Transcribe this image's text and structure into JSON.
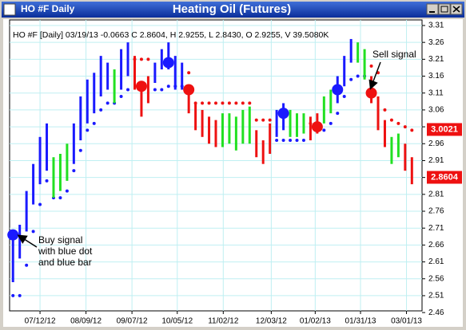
{
  "window_title": "HO #F Daily",
  "chart_data": {
    "type": "ohlc",
    "title": "Heating Oil (Futures)",
    "info": "HO #F [Daily] 03/19/13 -0.0663 C 2.8604, H 2.9255, L 2.8430, O 2.9255, V 39.5080K",
    "palette": {
      "blue": "#1a1aff",
      "green": "#22e022",
      "red": "#ee1111"
    },
    "x": [
      0,
      1,
      2,
      3,
      4,
      5,
      6,
      7,
      8,
      9,
      10,
      11,
      12,
      13,
      14,
      15,
      16,
      17,
      18,
      19,
      20,
      21,
      22,
      23,
      24,
      25,
      26,
      27,
      28,
      29,
      30,
      31,
      32,
      33,
      34,
      35,
      36,
      37,
      38,
      39,
      40,
      41,
      42,
      43,
      44,
      45,
      46,
      47,
      48,
      49,
      50,
      51,
      52,
      53,
      54,
      55,
      56,
      57,
      58,
      59
    ],
    "high": [
      2.68,
      2.72,
      2.82,
      2.9,
      2.98,
      3.02,
      2.92,
      2.93,
      2.96,
      3.02,
      3.1,
      3.15,
      3.17,
      3.22,
      3.2,
      3.18,
      3.24,
      3.26,
      3.22,
      3.14,
      3.16,
      3.2,
      3.24,
      3.26,
      3.22,
      3.2,
      3.13,
      3.08,
      3.06,
      3.04,
      3.03,
      3.05,
      3.05,
      3.04,
      3.06,
      3.07,
      3.0,
      2.97,
      3.02,
      3.06,
      3.08,
      3.06,
      3.05,
      3.05,
      3.04,
      3.05,
      3.1,
      3.12,
      3.16,
      3.22,
      3.27,
      3.26,
      3.24,
      3.16,
      3.1,
      3.03,
      2.98,
      2.99,
      2.96,
      2.92
    ],
    "low": [
      2.55,
      2.62,
      2.7,
      2.78,
      2.84,
      2.88,
      2.8,
      2.82,
      2.85,
      2.9,
      2.97,
      3.02,
      3.05,
      3.1,
      3.12,
      3.08,
      3.12,
      3.16,
      3.12,
      3.04,
      3.08,
      3.14,
      3.18,
      3.18,
      3.12,
      3.12,
      3.05,
      3.0,
      2.98,
      2.96,
      2.95,
      2.95,
      2.96,
      2.94,
      2.96,
      2.96,
      2.92,
      2.9,
      2.93,
      2.98,
      3.0,
      2.98,
      2.98,
      2.99,
      2.97,
      2.99,
      3.02,
      3.05,
      3.08,
      3.13,
      3.2,
      3.2,
      3.15,
      3.08,
      3.0,
      2.95,
      2.9,
      2.92,
      2.88,
      2.84
    ],
    "bar_colors": [
      "blue",
      "blue",
      "blue",
      "blue",
      "blue",
      "blue",
      "green",
      "green",
      "green",
      "blue",
      "blue",
      "blue",
      "blue",
      "blue",
      "blue",
      "green",
      "blue",
      "blue",
      "red",
      "red",
      "red",
      "blue",
      "blue",
      "blue",
      "blue",
      "blue",
      "red",
      "red",
      "red",
      "red",
      "red",
      "green",
      "green",
      "green",
      "green",
      "green",
      "red",
      "red",
      "red",
      "blue",
      "blue",
      "green",
      "green",
      "green",
      "red",
      "red",
      "green",
      "green",
      "blue",
      "blue",
      "blue",
      "green",
      "green",
      "red",
      "red",
      "red",
      "green",
      "green",
      "red",
      "red"
    ],
    "stops": [
      2.51,
      2.51,
      2.6,
      2.7,
      2.78,
      2.85,
      2.8,
      2.8,
      2.82,
      2.88,
      2.94,
      3.0,
      3.02,
      3.06,
      3.08,
      3.08,
      3.1,
      3.12,
      3.21,
      3.21,
      3.21,
      3.12,
      3.12,
      3.13,
      3.13,
      3.13,
      3.17,
      3.08,
      3.08,
      3.08,
      3.08,
      3.08,
      3.08,
      3.08,
      3.08,
      3.08,
      3.03,
      3.03,
      3.03,
      2.97,
      2.97,
      2.97,
      2.97,
      2.97,
      3.02,
      3.02,
      3.0,
      3.02,
      3.05,
      3.1,
      3.15,
      3.16,
      3.16,
      3.19,
      3.17,
      3.06,
      3.03,
      3.02,
      3.01,
      3.0
    ],
    "stop_colors": [
      "blue",
      "blue",
      "blue",
      "blue",
      "blue",
      "blue",
      "blue",
      "blue",
      "blue",
      "blue",
      "blue",
      "blue",
      "blue",
      "blue",
      "blue",
      "blue",
      "blue",
      "blue",
      "red",
      "red",
      "red",
      "blue",
      "blue",
      "blue",
      "blue",
      "blue",
      "red",
      "red",
      "red",
      "red",
      "red",
      "red",
      "red",
      "red",
      "red",
      "red",
      "red",
      "red",
      "red",
      "blue",
      "blue",
      "blue",
      "blue",
      "blue",
      "red",
      "red",
      "blue",
      "blue",
      "blue",
      "blue",
      "blue",
      "blue",
      "blue",
      "red",
      "red",
      "red",
      "red",
      "red",
      "red",
      "red"
    ],
    "signal_x": [
      0,
      19,
      23,
      26,
      40,
      45,
      48,
      53
    ],
    "signal_values": [
      2.69,
      3.13,
      3.2,
      3.12,
      3.05,
      3.01,
      3.12,
      3.11
    ],
    "signal_colors": [
      "blue",
      "red",
      "blue",
      "red",
      "blue",
      "red",
      "blue",
      "red"
    ],
    "price_labels": [
      {
        "value": 3.0021,
        "color": "red"
      },
      {
        "value": 2.8604,
        "color": "red"
      }
    ],
    "xlim": [
      -0.5,
      60.5
    ],
    "xticks": [
      {
        "value": 4,
        "label": "07/12/12"
      },
      {
        "value": 10.8,
        "label": "08/09/12"
      },
      {
        "value": 17.6,
        "label": "09/07/12"
      },
      {
        "value": 24.3,
        "label": "10/05/12"
      },
      {
        "value": 31.1,
        "label": "11/02/12"
      },
      {
        "value": 38.2,
        "label": "12/03/12"
      },
      {
        "value": 44.7,
        "label": "01/02/13"
      },
      {
        "value": 51.4,
        "label": "01/31/13"
      },
      {
        "value": 58.2,
        "label": "03/01/13"
      }
    ],
    "ylim": [
      2.465,
      3.3265
    ],
    "yticks": [
      2.46,
      2.51,
      2.56,
      2.61,
      2.66,
      2.71,
      2.76,
      2.81,
      2.86,
      2.91,
      2.96,
      3.01,
      3.06,
      3.11,
      3.16,
      3.21,
      3.26,
      3.31
    ],
    "grid": true,
    "annotations": {
      "buy": [
        "Buy signal",
        "with blue dot",
        "and blue bar"
      ],
      "sell": "Sell signal"
    }
  }
}
